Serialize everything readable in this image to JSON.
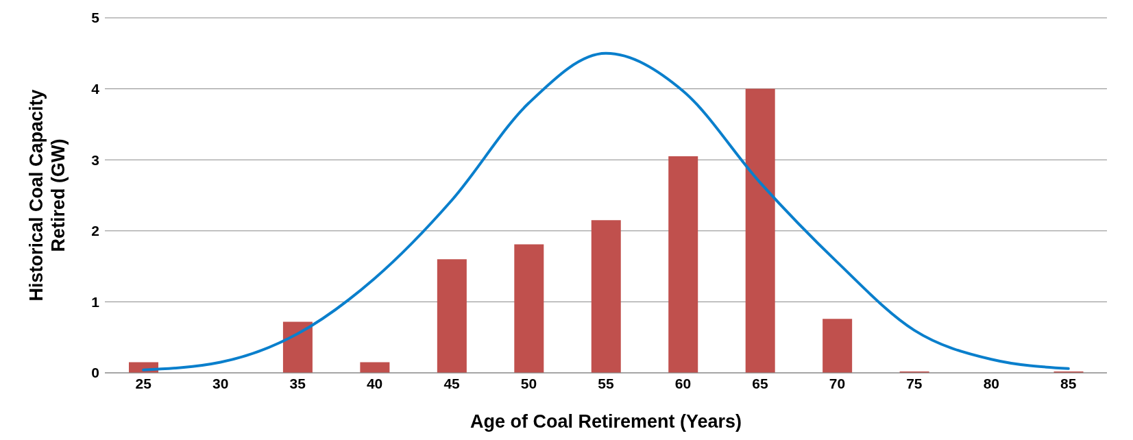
{
  "chart_data": {
    "type": "bar",
    "xlabel": "Age of Coal Retirement (Years)",
    "ylabel": "Historical Coal Capacity\nRetired (GW)",
    "categories": [
      "25",
      "30",
      "35",
      "40",
      "45",
      "50",
      "55",
      "60",
      "65",
      "70",
      "75",
      "80",
      "85"
    ],
    "series": [
      {
        "color": "#c0504d",
        "values": [
          0.15,
          0,
          0.72,
          0.15,
          1.6,
          1.81,
          2.15,
          3.05,
          4.0,
          0.76,
          0.02,
          0,
          0.02
        ]
      },
      {
        "type": "line",
        "color": "#0a7fcc",
        "values": [
          0.04,
          0.15,
          0.55,
          1.33,
          2.43,
          3.8,
          4.5,
          3.97,
          2.68,
          1.56,
          0.6,
          0.19,
          0.06
        ]
      }
    ],
    "ylim": [
      0,
      5
    ],
    "yticks": [
      0,
      1,
      2,
      3,
      4,
      5
    ],
    "grid": "y",
    "legend": false,
    "marker": "none",
    "line_style": "solid"
  }
}
